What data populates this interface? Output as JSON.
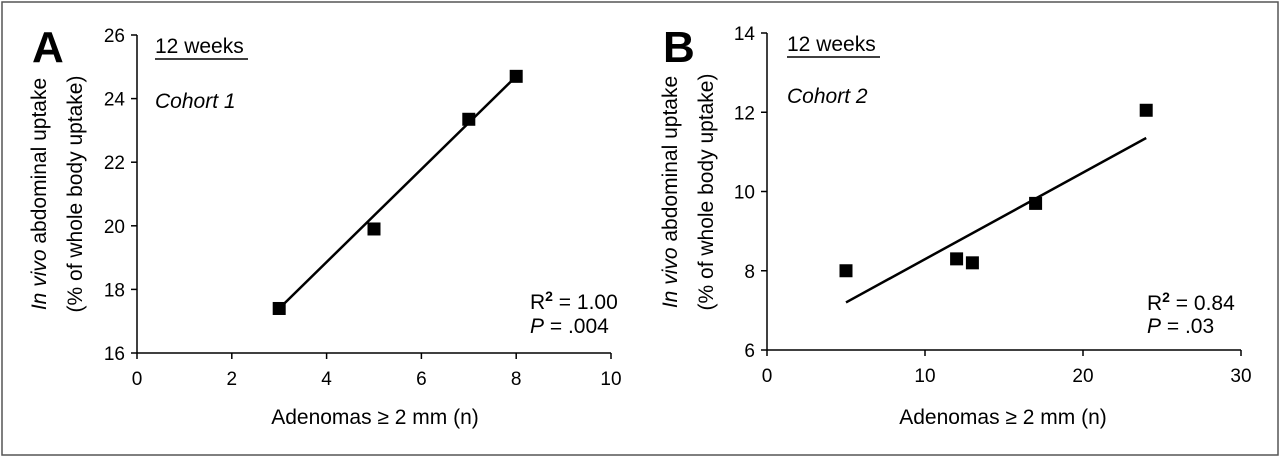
{
  "chart_data": [
    {
      "type": "scatter",
      "panel_label": "A",
      "duration_label": "12 weeks",
      "cohort_label": "Cohort 1",
      "points": [
        {
          "x": 3,
          "y": 17.4
        },
        {
          "x": 5,
          "y": 19.9
        },
        {
          "x": 7,
          "y": 23.35
        },
        {
          "x": 8,
          "y": 24.7
        }
      ],
      "fit_line": [
        {
          "x": 3,
          "y": 17.4
        },
        {
          "x": 8,
          "y": 24.7
        }
      ],
      "stats": {
        "r2_prefix": "R",
        "r2_sup": "2",
        "r2_value": " = 1.00",
        "p_prefix": "P",
        "p_value": " = .004"
      },
      "xlabel": "Adenomas ≥ 2 mm (n)",
      "ylabel_italic": "In vivo",
      "ylabel_rest": " abdominal uptake",
      "ylabel_line2": "(% of whole body uptake)",
      "xlim": [
        0,
        10
      ],
      "ylim": [
        16,
        26
      ],
      "xticks": [
        "0",
        "2",
        "4",
        "6",
        "8",
        "10"
      ],
      "yticks": [
        "16",
        "18",
        "20",
        "22",
        "24",
        "26"
      ]
    },
    {
      "type": "scatter",
      "panel_label": "B",
      "duration_label": "12 weeks",
      "cohort_label": "Cohort 2",
      "points": [
        {
          "x": 5,
          "y": 8.0
        },
        {
          "x": 12,
          "y": 8.3
        },
        {
          "x": 13,
          "y": 8.2
        },
        {
          "x": 17,
          "y": 9.7
        },
        {
          "x": 24,
          "y": 12.05
        }
      ],
      "fit_line": [
        {
          "x": 5,
          "y": 7.2
        },
        {
          "x": 24,
          "y": 11.35
        }
      ],
      "stats": {
        "r2_prefix": "R",
        "r2_sup": "2",
        "r2_value": " = 0.84",
        "p_prefix": "P",
        "p_value": " = .03"
      },
      "xlabel": "Adenomas ≥ 2 mm (n)",
      "ylabel_italic": "In vivo",
      "ylabel_rest": " abdominal uptake",
      "ylabel_line2": "(% of whole body uptake)",
      "xlim": [
        0,
        30
      ],
      "ylim": [
        6,
        14
      ],
      "xticks": [
        "0",
        "10",
        "20",
        "30"
      ],
      "yticks": [
        "6",
        "8",
        "10",
        "12",
        "14"
      ]
    }
  ]
}
